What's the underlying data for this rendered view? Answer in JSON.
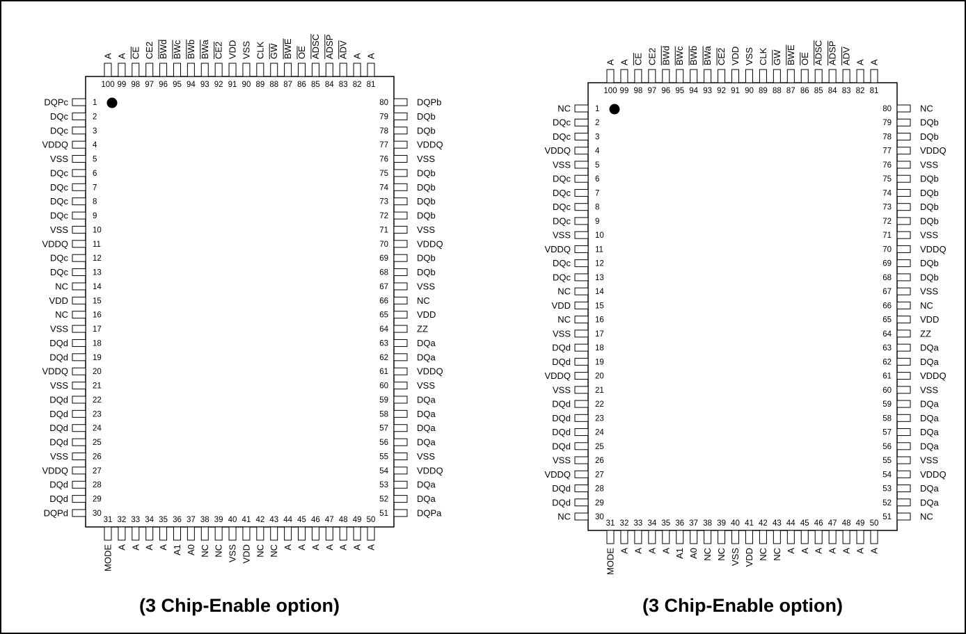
{
  "packages": [
    {
      "caption": "(3 Chip-Enable option)",
      "left_pins": [
        "DQPc",
        "DQc",
        "DQc",
        "VDDQ",
        "VSS",
        "DQc",
        "DQc",
        "DQc",
        "DQc",
        "VSS",
        "VDDQ",
        "DQc",
        "DQc",
        "NC",
        "VDD",
        "NC",
        "VSS",
        "DQd",
        "DQd",
        "VDDQ",
        "VSS",
        "DQd",
        "DQd",
        "DQd",
        "DQd",
        "VSS",
        "VDDQ",
        "DQd",
        "DQd",
        "DQPd"
      ],
      "bottom_pins": [
        "MODE",
        "A",
        "A",
        "A",
        "A",
        "A1",
        "A0",
        "NC",
        "NC",
        "VSS",
        "VDD",
        "NC",
        "NC",
        "A",
        "A",
        "A",
        "A",
        "A",
        "A",
        "A"
      ],
      "right_pins": [
        "DQPa",
        "DQa",
        "DQa",
        "VDDQ",
        "VSS",
        "DQa",
        "DQa",
        "DQa",
        "DQa",
        "VSS",
        "VDDQ",
        "DQa",
        "DQa",
        "ZZ",
        "VDD",
        "NC",
        "VSS",
        "DQb",
        "DQb",
        "VDDQ",
        "VSS",
        "DQb",
        "DQb",
        "DQb",
        "DQb",
        "VSS",
        "VDDQ",
        "DQb",
        "DQb",
        "DQPb"
      ],
      "top_pins": [
        {
          "label": "A",
          "over": false
        },
        {
          "label": "A",
          "over": false
        },
        {
          "label": "CE",
          "over": true
        },
        {
          "label": "CE2",
          "over": false
        },
        {
          "label": "BWd",
          "over": true
        },
        {
          "label": "BWc",
          "over": true
        },
        {
          "label": "BWb",
          "over": true
        },
        {
          "label": "BWa",
          "over": true
        },
        {
          "label": "CE2",
          "over": true
        },
        {
          "label": "VDD",
          "over": false
        },
        {
          "label": "VSS",
          "over": false
        },
        {
          "label": "CLK",
          "over": false
        },
        {
          "label": "GW",
          "over": true
        },
        {
          "label": "BWE",
          "over": true
        },
        {
          "label": "OE",
          "over": true
        },
        {
          "label": "ADSC",
          "over": true
        },
        {
          "label": "ADSP",
          "over": true
        },
        {
          "label": "ADV",
          "over": true
        },
        {
          "label": "A",
          "over": false
        },
        {
          "label": "A",
          "over": false
        }
      ]
    },
    {
      "caption": "(3 Chip-Enable option)",
      "left_pins": [
        "NC",
        "DQc",
        "DQc",
        "VDDQ",
        "VSS",
        "DQc",
        "DQc",
        "DQc",
        "DQc",
        "VSS",
        "VDDQ",
        "DQc",
        "DQc",
        "NC",
        "VDD",
        "NC",
        "VSS",
        "DQd",
        "DQd",
        "VDDQ",
        "VSS",
        "DQd",
        "DQd",
        "DQd",
        "DQd",
        "VSS",
        "VDDQ",
        "DQd",
        "DQd",
        "NC"
      ],
      "bottom_pins": [
        "MODE",
        "A",
        "A",
        "A",
        "A",
        "A1",
        "A0",
        "NC",
        "NC",
        "VSS",
        "VDD",
        "NC",
        "NC",
        "A",
        "A",
        "A",
        "A",
        "A",
        "A",
        "A"
      ],
      "right_pins": [
        "NC",
        "DQa",
        "DQa",
        "VDDQ",
        "VSS",
        "DQa",
        "DQa",
        "DQa",
        "DQa",
        "VSS",
        "VDDQ",
        "DQa",
        "DQa",
        "ZZ",
        "VDD",
        "NC",
        "VSS",
        "DQb",
        "DQb",
        "VDDQ",
        "VSS",
        "DQb",
        "DQb",
        "DQb",
        "DQb",
        "VSS",
        "VDDQ",
        "DQb",
        "DQb",
        "NC"
      ],
      "top_pins": [
        {
          "label": "A",
          "over": false
        },
        {
          "label": "A",
          "over": false
        },
        {
          "label": "CE",
          "over": true
        },
        {
          "label": "CE2",
          "over": false
        },
        {
          "label": "BWd",
          "over": true
        },
        {
          "label": "BWc",
          "over": true
        },
        {
          "label": "BWb",
          "over": true
        },
        {
          "label": "BWa",
          "over": true
        },
        {
          "label": "CE2",
          "over": true
        },
        {
          "label": "VDD",
          "over": false
        },
        {
          "label": "VSS",
          "over": false
        },
        {
          "label": "CLK",
          "over": false
        },
        {
          "label": "GW",
          "over": true
        },
        {
          "label": "BWE",
          "over": true
        },
        {
          "label": "OE",
          "over": true
        },
        {
          "label": "ADSC",
          "over": true
        },
        {
          "label": "ADSP",
          "over": true
        },
        {
          "label": "ADV",
          "over": true
        },
        {
          "label": "A",
          "over": false
        },
        {
          "label": "A",
          "over": false
        }
      ]
    }
  ]
}
